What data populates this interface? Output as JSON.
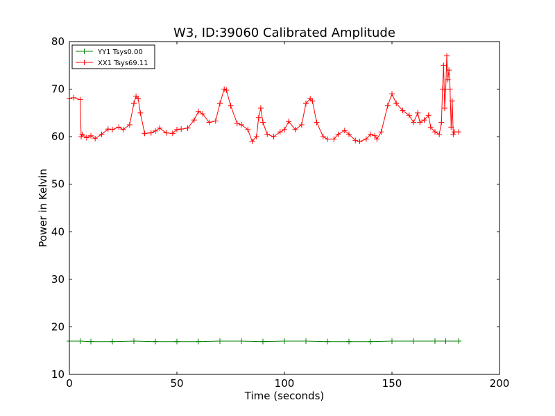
{
  "chart_data": {
    "type": "line",
    "title": "W3, ID:39060 Calibrated Amplitude",
    "xlabel": "Time (seconds)",
    "ylabel": "Power in Kelvin",
    "xlim": [
      0,
      200
    ],
    "ylim": [
      10,
      80
    ],
    "xticks": [
      "0",
      "50",
      "100",
      "150",
      "200"
    ],
    "yticks": [
      "10",
      "20",
      "30",
      "40",
      "50",
      "60",
      "70",
      "80"
    ],
    "grid": false,
    "legend_position": "top-left",
    "marker": "+",
    "series": [
      {
        "name": "YY1 Tsys0.00",
        "color": "#008000",
        "x": [
          0,
          5,
          10,
          20,
          30,
          40,
          50,
          60,
          70,
          80,
          90,
          100,
          110,
          120,
          130,
          140,
          150,
          160,
          170,
          175,
          181
        ],
        "y": [
          17.0,
          17.0,
          16.9,
          16.9,
          17.0,
          16.9,
          16.9,
          16.9,
          17.0,
          17.0,
          16.9,
          17.0,
          17.0,
          16.9,
          16.9,
          16.9,
          17.0,
          17.0,
          17.0,
          17.0,
          17.0
        ]
      },
      {
        "name": "XX1 Tsys69.11",
        "color": "#ff0000",
        "x": [
          0,
          2,
          5,
          5.5,
          6,
          8,
          10,
          12,
          15,
          18,
          20,
          23,
          25,
          28,
          30,
          31,
          32,
          33,
          35,
          38,
          40,
          42,
          45,
          48,
          50,
          52,
          55,
          58,
          60,
          62,
          65,
          68,
          70,
          72,
          73,
          75,
          78,
          80,
          83,
          85,
          87,
          88,
          89,
          90,
          92,
          95,
          98,
          100,
          102,
          105,
          108,
          110,
          112,
          113,
          115,
          118,
          120,
          123,
          125,
          128,
          130,
          133,
          135,
          138,
          140,
          142,
          143,
          145,
          148,
          150,
          152,
          155,
          158,
          160,
          162,
          163,
          165,
          167,
          168,
          170,
          172,
          173,
          173.5,
          174,
          174.5,
          175,
          175.5,
          176,
          176.5,
          177,
          177.5,
          178,
          178.5,
          179,
          181
        ],
        "y": [
          68.0,
          68.2,
          67.8,
          60.0,
          60.5,
          59.8,
          60.2,
          59.6,
          60.5,
          61.6,
          61.5,
          62.0,
          61.5,
          62.5,
          67.0,
          68.5,
          68.0,
          65.0,
          60.7,
          60.8,
          61.2,
          61.8,
          60.8,
          60.7,
          61.5,
          61.6,
          61.8,
          63.5,
          65.3,
          64.8,
          63.0,
          63.3,
          67.0,
          70.0,
          69.8,
          66.5,
          62.8,
          62.5,
          61.5,
          59.0,
          60.0,
          64.0,
          66.0,
          63.0,
          60.5,
          60.0,
          61.0,
          61.5,
          63.2,
          61.5,
          62.5,
          67.0,
          68.0,
          67.5,
          63.0,
          60.0,
          59.5,
          59.5,
          60.5,
          61.3,
          60.5,
          59.2,
          59.0,
          59.5,
          60.5,
          60.2,
          59.5,
          61.0,
          66.5,
          69.0,
          67.0,
          65.5,
          64.5,
          63.0,
          65.0,
          63.0,
          63.5,
          64.5,
          62.0,
          61.0,
          60.5,
          63.0,
          70.0,
          75.0,
          66.0,
          70.0,
          77.0,
          72.0,
          74.0,
          70.0,
          62.0,
          67.5,
          60.5,
          61.0,
          61.0
        ]
      }
    ]
  }
}
